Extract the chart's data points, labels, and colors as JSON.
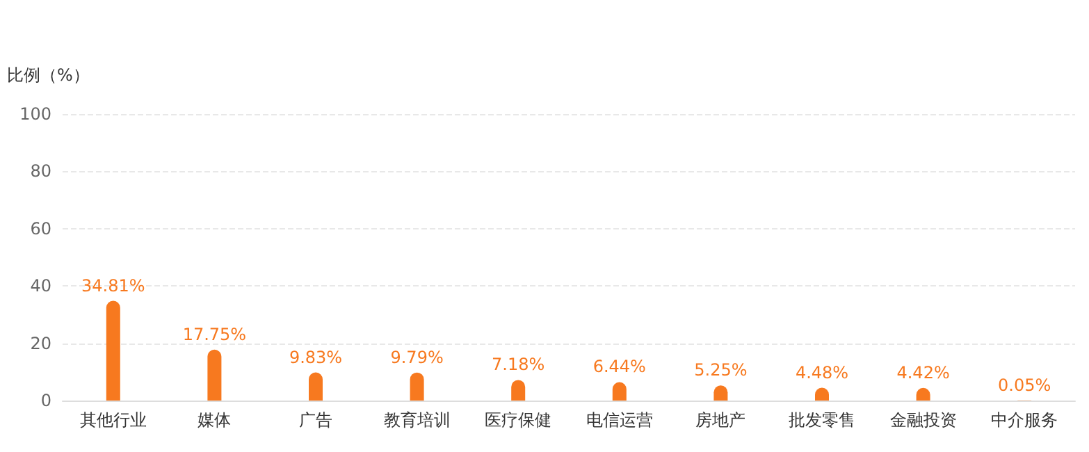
{
  "chart_data": {
    "type": "bar",
    "ylabel": "比例（%）",
    "categories": [
      "其他行业",
      "媒体",
      "广告",
      "教育培训",
      "医疗保健",
      "电信运营",
      "房地产",
      "批发零售",
      "金融投资",
      "中介服务"
    ],
    "values": [
      34.81,
      17.75,
      9.83,
      9.79,
      7.18,
      6.44,
      5.25,
      4.48,
      4.42,
      0.05
    ],
    "value_labels": [
      "34.81%",
      "17.75%",
      "9.83%",
      "9.79%",
      "7.18%",
      "6.44%",
      "5.25%",
      "4.48%",
      "4.42%",
      "0.05%"
    ],
    "color": "#f7791f",
    "ylim": [
      0,
      100
    ],
    "yticks": [
      0,
      20,
      40,
      60,
      80,
      100
    ],
    "grid": "y"
  }
}
